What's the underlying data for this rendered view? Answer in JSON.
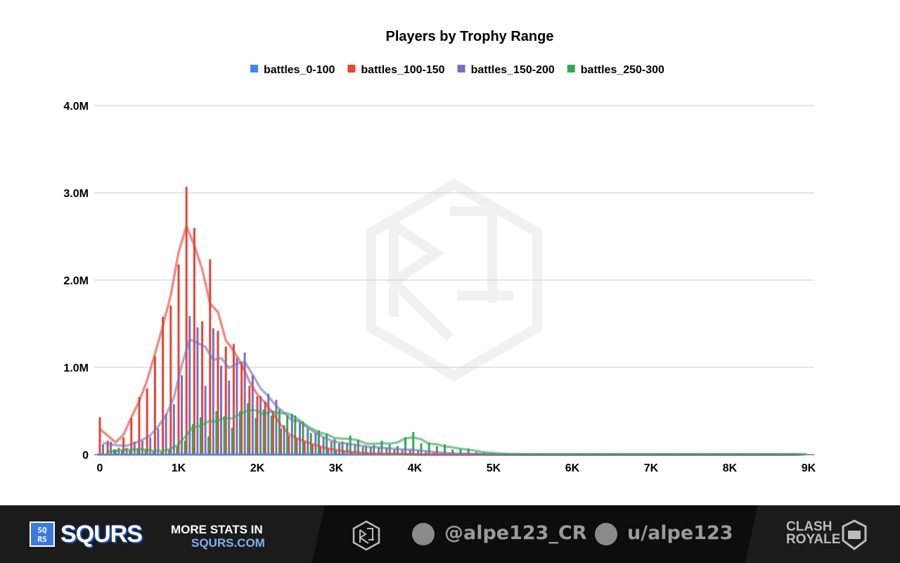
{
  "chart_data": {
    "type": "bar",
    "title": "Players by Trophy Range",
    "xlabel": "",
    "ylabel": "",
    "x_ticks": [
      "0",
      "1K",
      "2K",
      "3K",
      "4K",
      "5K",
      "6K",
      "7K",
      "8K",
      "9K"
    ],
    "y_ticks": [
      "0",
      "1.0M",
      "2.0M",
      "3.0M",
      "4.0M"
    ],
    "xlim": [
      0,
      9000
    ],
    "ylim": [
      0,
      4000000
    ],
    "grid": true,
    "legend_position": "top",
    "trendlines": true,
    "x": [
      0,
      100,
      200,
      300,
      400,
      500,
      600,
      700,
      800,
      900,
      1000,
      1100,
      1200,
      1300,
      1400,
      1500,
      1600,
      1700,
      1800,
      1900,
      2000,
      2100,
      2200,
      2300,
      2400,
      2500,
      2600,
      2700,
      2800,
      2900,
      3000,
      3100,
      3200,
      3300,
      3400,
      3500,
      3600,
      3700,
      3800,
      3900,
      4000,
      4100,
      4200,
      4300,
      4400,
      4500,
      4600,
      4700,
      4800,
      4900,
      5000,
      5100,
      5200,
      5300,
      5400,
      5500,
      5600,
      5700,
      5800,
      5900,
      6000,
      6100,
      6200,
      6300,
      6400,
      6500,
      6600,
      6700,
      6800,
      6900,
      7000,
      7100,
      7200,
      7300,
      7400,
      7500,
      7600,
      7700,
      7800,
      7900,
      8000,
      8100,
      8200,
      8300,
      8400,
      8500,
      8600,
      8700,
      8800,
      8900
    ],
    "series": [
      {
        "name": "battles_0-100",
        "color": "#4285f4",
        "values": [
          0,
          0,
          0,
          0,
          0,
          0,
          0,
          0,
          0,
          0,
          0,
          0,
          0,
          0,
          0,
          0,
          0,
          0,
          0,
          0,
          0,
          0,
          0,
          0,
          0,
          0,
          0,
          0,
          0,
          0,
          0,
          0,
          0,
          0,
          0,
          0,
          0,
          0,
          0,
          0,
          0,
          0,
          0,
          0,
          0,
          0,
          0,
          0,
          0,
          0,
          0,
          0,
          0,
          0,
          0,
          0,
          0,
          0,
          0,
          0,
          0,
          0,
          0,
          0,
          0,
          0,
          0,
          0,
          0,
          0,
          0,
          0,
          0,
          0,
          0,
          0,
          0,
          0,
          0,
          0,
          0,
          0,
          0,
          0,
          0,
          0,
          0,
          0,
          0,
          0
        ]
      },
      {
        "name": "battles_100-150",
        "color": "#ea4335",
        "values": [
          430000,
          160000,
          60000,
          200000,
          420000,
          660000,
          760000,
          1130000,
          1580000,
          1710000,
          2180000,
          3070000,
          2600000,
          1530000,
          2240000,
          1420000,
          1240000,
          1270000,
          1050000,
          790000,
          670000,
          610000,
          500000,
          300000,
          220000,
          190000,
          150000,
          120000,
          90000,
          70000,
          50000,
          40000,
          30000,
          20000,
          20000,
          10000,
          10000,
          10000,
          10000,
          10000,
          0,
          0,
          0,
          0,
          0,
          0,
          0,
          0,
          0,
          0,
          0,
          0,
          0,
          0,
          0,
          0,
          0,
          0,
          0,
          0,
          0,
          0,
          0,
          0,
          0,
          0,
          0,
          0,
          0,
          0,
          0,
          0,
          0,
          0,
          0,
          0,
          0,
          0,
          0,
          0,
          0,
          0,
          0,
          0,
          0,
          0,
          0,
          0,
          0,
          0
        ]
      },
      {
        "name": "battles_150-200",
        "color": "#7b6fbf",
        "values": [
          120000,
          150000,
          80000,
          80000,
          150000,
          160000,
          200000,
          300000,
          470000,
          580000,
          910000,
          1590000,
          1460000,
          790000,
          1450000,
          1020000,
          850000,
          1110000,
          1170000,
          910000,
          670000,
          700000,
          630000,
          340000,
          470000,
          370000,
          300000,
          250000,
          200000,
          150000,
          130000,
          130000,
          120000,
          90000,
          90000,
          80000,
          80000,
          60000,
          60000,
          60000,
          50000,
          40000,
          30000,
          20000,
          20000,
          10000,
          10000,
          10000,
          5000,
          5000,
          0,
          0,
          0,
          0,
          0,
          0,
          0,
          0,
          0,
          0,
          0,
          0,
          0,
          0,
          0,
          0,
          0,
          0,
          0,
          0,
          0,
          0,
          0,
          0,
          0,
          0,
          0,
          0,
          0,
          0,
          0,
          0,
          0,
          0,
          0,
          0,
          0,
          0,
          0,
          0
        ]
      },
      {
        "name": "battles_250-300",
        "color": "#34a853",
        "values": [
          10000,
          60000,
          50000,
          50000,
          70000,
          60000,
          40000,
          30000,
          60000,
          90000,
          160000,
          350000,
          430000,
          210000,
          500000,
          440000,
          310000,
          500000,
          590000,
          420000,
          520000,
          450000,
          520000,
          450000,
          450000,
          380000,
          250000,
          280000,
          240000,
          180000,
          150000,
          220000,
          170000,
          100000,
          110000,
          160000,
          120000,
          100000,
          200000,
          260000,
          130000,
          140000,
          100000,
          120000,
          60000,
          70000,
          70000,
          30000,
          30000,
          20000,
          10000,
          10000,
          5000,
          5000,
          5000,
          5000,
          5000,
          5000,
          5000,
          5000,
          5000,
          5000,
          5000,
          5000,
          5000,
          5000,
          5000,
          5000,
          5000,
          5000,
          5000,
          5000,
          5000,
          5000,
          5000,
          5000,
          5000,
          5000,
          5000,
          5000,
          5000,
          5000,
          5000,
          5000,
          5000,
          5000,
          5000,
          5000,
          5000,
          5000
        ]
      }
    ]
  },
  "footer": {
    "logo_box": "SQ RS",
    "brand": "SQURS",
    "more_line1": "MORE STATS IN",
    "more_line2": "SQURS.COM",
    "twitter": "@alpe123_CR",
    "reddit": "u/alpe123",
    "game_logo": "CLASH ROYALE"
  }
}
